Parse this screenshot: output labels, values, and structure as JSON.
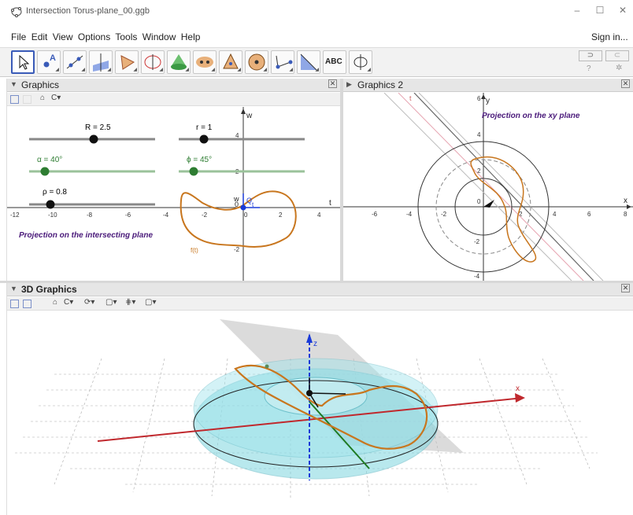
{
  "window": {
    "title": "Intersection Torus-plane_00.ggb",
    "sign_in": "Sign in..."
  },
  "menu": [
    "File",
    "Edit",
    "View",
    "Options",
    "Tools",
    "Window",
    "Help"
  ],
  "toolbar": {
    "text_tool": "ABC",
    "icons": [
      "move-icon",
      "point-icon",
      "line-icon",
      "perpendicular-icon",
      "polygon-icon",
      "circle-icon",
      "cone-icon",
      "reflect-icon",
      "pyramid-icon",
      "sphere-icon",
      "angle-icon",
      "transform-icon",
      "text-icon",
      "rotate-view-icon"
    ]
  },
  "graphics": {
    "title": "Graphics",
    "sliders": [
      {
        "label": "R = 2.5",
        "color": "#222222"
      },
      {
        "label": "r = 1",
        "color": "#222222"
      },
      {
        "label": "α = 40°",
        "color": "#2e7d32"
      },
      {
        "label": "ϕ = 45°",
        "color": "#2e7d32"
      },
      {
        "label": "ρ = 0.8",
        "color": "#222222"
      }
    ],
    "caption": "Projection on the intersecting plane",
    "axis_w": "w",
    "axis_t": "t",
    "origin_label": "0",
    "point_Q": "Q",
    "point_t": "t",
    "curve_label": "f(t)",
    "x_ticks": [
      "-12",
      "-10",
      "-8",
      "-6",
      "-4",
      "-2",
      "0",
      "2",
      "4"
    ],
    "y_ticks": [
      "4",
      "2",
      "-2"
    ]
  },
  "graphics2": {
    "title": "Graphics 2",
    "caption": "Projection on the xy plane",
    "axis_x": "x",
    "axis_y": "y",
    "line_label": "t",
    "x_ticks": [
      "-6",
      "-4",
      "-2",
      "0",
      "2",
      "4",
      "6",
      "8"
    ],
    "y_ticks": [
      "6",
      "4",
      "2",
      "-2",
      "-4"
    ]
  },
  "graphics3d": {
    "title": "3D Graphics",
    "axis_x": "x",
    "axis_z": "z"
  },
  "colors": {
    "curve": "#c8761e",
    "caption": "#4a1a7a",
    "slider_green": "#2e7d32",
    "torus": "#7fd6e0",
    "accent": "#3a5bb8"
  }
}
